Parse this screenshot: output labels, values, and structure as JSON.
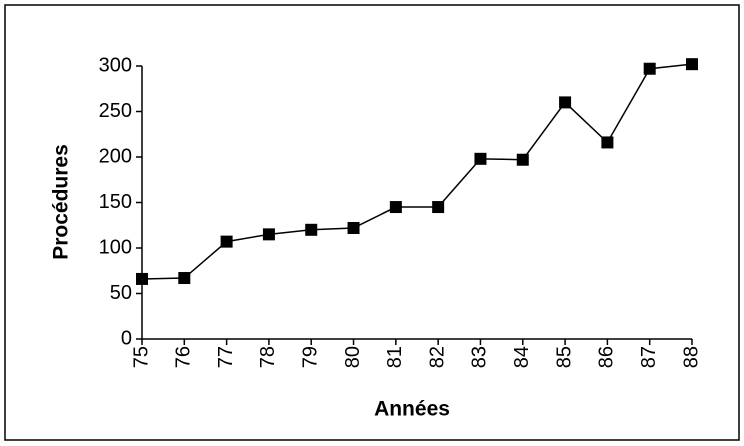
{
  "chart_data": {
    "type": "line",
    "x_label": "Années",
    "y_label": "Procédures",
    "categories": [
      "75",
      "76",
      "77",
      "78",
      "79",
      "80",
      "81",
      "82",
      "83",
      "84",
      "85",
      "86",
      "87",
      "88"
    ],
    "series": [
      {
        "name": "Procédures",
        "color": "#000000",
        "values": [
          66,
          67,
          107,
          115,
          120,
          122,
          145,
          145,
          198,
          197,
          260,
          216,
          297,
          302
        ]
      }
    ],
    "ylim": [
      0,
      300
    ],
    "yticks": [
      0,
      50,
      100,
      150,
      200,
      250,
      300
    ],
    "grid": false
  }
}
